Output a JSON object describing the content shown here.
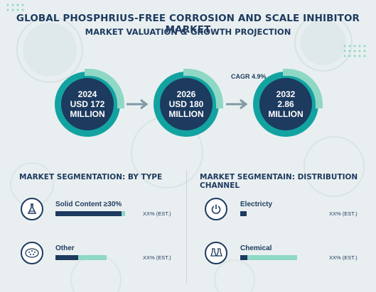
{
  "header": {
    "title": "GLOBAL PHOSPHRIUS-FREE CORROSION AND SCALE INHIBITOR MARKET",
    "subtitle": "MARKET VALUATION & GROWTH PROJECTION"
  },
  "timeline": [
    {
      "year": "2024",
      "line1": "USD 172",
      "line2": "MILLION"
    },
    {
      "year": "2026",
      "line1": "USD 180",
      "line2": "MILLION"
    },
    {
      "year": "2032",
      "line1": "2.86",
      "line2": "MILLION"
    }
  ],
  "cagr": "CAGR 4.9%",
  "type_section": {
    "heading": "MARKET SEGMENTATION: BY TYPE",
    "items": [
      {
        "label": "Solid Content ≥30%",
        "icon": "flask-icon",
        "share": 0.95,
        "est": "XX% (EST.)"
      },
      {
        "label": "Other",
        "icon": "granules-icon",
        "share": 0.45,
        "est": "XX% (EST.)"
      }
    ]
  },
  "channel_section": {
    "heading": "MARKET SEGMENTAIN: DISTRIBUTION CHANNEL",
    "items": [
      {
        "label": "Electricty",
        "icon": "power-icon",
        "share": 0.09,
        "est": "XX% (EST.)"
      },
      {
        "label": "Chemical",
        "icon": "beakers-icon",
        "share": 0.13,
        "est": "XX% (EST.)"
      }
    ]
  },
  "colors": {
    "navy": "#1d3a5f",
    "teal": "#12a3a1",
    "mint": "#8fd8c6",
    "background": "#e9eff0"
  }
}
